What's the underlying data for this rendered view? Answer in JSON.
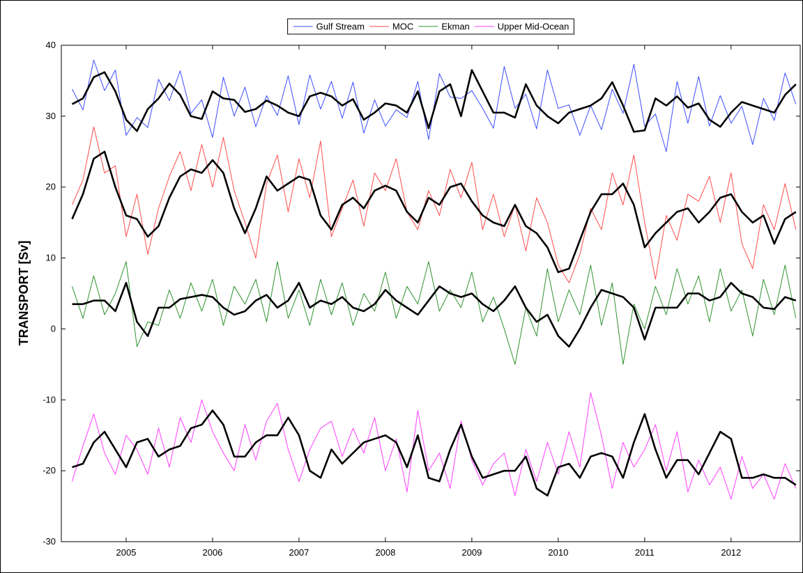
{
  "chart_data": {
    "type": "line",
    "ylabel": "TRANSPORT [Sv]",
    "x": [
      2004.375,
      2004.5,
      2004.625,
      2004.75,
      2004.875,
      2005.0,
      2005.125,
      2005.25,
      2005.375,
      2005.5,
      2005.625,
      2005.75,
      2005.875,
      2006.0,
      2006.125,
      2006.25,
      2006.375,
      2006.5,
      2006.625,
      2006.75,
      2006.875,
      2007.0,
      2007.125,
      2007.25,
      2007.375,
      2007.5,
      2007.625,
      2007.75,
      2007.875,
      2008.0,
      2008.125,
      2008.25,
      2008.375,
      2008.5,
      2008.625,
      2008.75,
      2008.875,
      2009.0,
      2009.125,
      2009.25,
      2009.375,
      2009.5,
      2009.625,
      2009.75,
      2009.875,
      2010.0,
      2010.125,
      2010.25,
      2010.375,
      2010.5,
      2010.625,
      2010.75,
      2010.875,
      2011.0,
      2011.125,
      2011.25,
      2011.375,
      2011.5,
      2011.625,
      2011.75,
      2011.875,
      2012.0,
      2012.125,
      2012.25,
      2012.375,
      2012.5,
      2012.625,
      2012.75
    ],
    "xlim": [
      2004.25,
      2012.8
    ],
    "xticks": [
      2005,
      2006,
      2007,
      2008,
      2009,
      2010,
      2011,
      2012
    ],
    "ylim": [
      -30,
      40
    ],
    "yticks": [
      -30,
      -20,
      -10,
      0,
      10,
      20,
      30,
      40
    ],
    "grid": false,
    "legend": "top",
    "series": [
      {
        "name": "Gulf Stream",
        "color": "#3a4cff",
        "values": [
          33.8,
          30.9,
          37.9,
          33.6,
          36.5,
          27.3,
          29.8,
          28.4,
          35.2,
          32.2,
          36.4,
          30.4,
          32.3,
          27.0,
          35.5,
          30.0,
          34.1,
          28.5,
          32.9,
          30.1,
          35.7,
          28.8,
          35.8,
          31.0,
          34.9,
          29.7,
          34.8,
          27.6,
          32.3,
          28.6,
          30.9,
          29.8,
          34.9,
          26.7,
          36.0,
          32.7,
          32.5,
          33.6,
          31.1,
          28.3,
          37.0,
          31.1,
          33.1,
          28.2,
          36.5,
          31.1,
          31.6,
          27.3,
          31.5,
          28.1,
          33.8,
          30.4,
          37.3,
          28.6,
          30.3,
          25.0,
          34.9,
          29.0,
          35.6,
          28.6,
          32.9,
          29.0,
          31.4,
          26.0,
          32.5,
          29.4,
          36.1,
          31.7
        ]
      },
      {
        "name": "MOC",
        "color": "#ff4a4a",
        "values": [
          17.5,
          21.0,
          28.5,
          22.0,
          23.0,
          13.0,
          19.0,
          10.5,
          17.0,
          21.5,
          25.0,
          19.5,
          26.0,
          20.0,
          27.0,
          19.5,
          15.0,
          10.0,
          20.5,
          24.5,
          16.5,
          24.0,
          18.5,
          26.5,
          13.0,
          17.0,
          21.0,
          14.5,
          22.0,
          19.5,
          24.0,
          16.5,
          14.0,
          19.5,
          16.0,
          22.5,
          18.5,
          23.5,
          14.0,
          19.0,
          13.0,
          17.5,
          11.0,
          18.5,
          15.0,
          9.0,
          6.5,
          10.5,
          17.0,
          14.0,
          22.0,
          17.5,
          24.5,
          15.0,
          7.0,
          16.0,
          12.5,
          19.0,
          18.0,
          21.5,
          15.0,
          22.0,
          12.0,
          8.5,
          17.5,
          14.0,
          20.5,
          14.0
        ]
      },
      {
        "name": "Ekman",
        "color": "#2f922f",
        "values": [
          6.0,
          1.5,
          7.5,
          2.0,
          5.0,
          9.5,
          -2.5,
          1.0,
          0.5,
          5.5,
          1.5,
          6.5,
          2.5,
          7.0,
          0.5,
          6.0,
          3.5,
          7.0,
          1.0,
          9.5,
          1.5,
          5.5,
          0.5,
          7.0,
          2.0,
          6.5,
          0.5,
          5.0,
          2.5,
          8.0,
          1.5,
          6.0,
          3.5,
          9.5,
          2.5,
          5.5,
          3.0,
          8.0,
          1.0,
          4.5,
          0.0,
          -5.0,
          3.0,
          -1.0,
          8.5,
          1.0,
          5.5,
          2.0,
          9.0,
          0.5,
          6.5,
          -5.0,
          3.5,
          0.0,
          6.0,
          2.0,
          8.5,
          3.5,
          7.5,
          1.0,
          8.5,
          2.5,
          5.5,
          -1.0,
          7.0,
          2.0,
          9.0,
          1.5
        ]
      },
      {
        "name": "Upper Mid-Ocean",
        "color": "#ff3cff",
        "values": [
          -21.5,
          -16.5,
          -12.0,
          -17.5,
          -20.5,
          -15.0,
          -17.0,
          -20.5,
          -14.0,
          -19.5,
          -12.5,
          -16.0,
          -10.0,
          -14.5,
          -17.5,
          -20.0,
          -13.5,
          -18.5,
          -13.0,
          -10.5,
          -17.0,
          -21.5,
          -17.0,
          -14.0,
          -13.0,
          -18.0,
          -14.0,
          -17.5,
          -12.5,
          -20.0,
          -15.5,
          -23.0,
          -11.5,
          -20.0,
          -17.5,
          -22.5,
          -13.0,
          -18.5,
          -22.0,
          -19.0,
          -17.5,
          -23.5,
          -17.0,
          -21.5,
          -16.0,
          -20.5,
          -14.5,
          -19.5,
          -9.0,
          -15.0,
          -22.5,
          -16.0,
          -19.5,
          -17.0,
          -13.5,
          -20.0,
          -14.5,
          -23.0,
          -18.5,
          -22.0,
          -19.5,
          -24.0,
          -18.0,
          -22.5,
          -20.5,
          -24.0,
          -19.0,
          -22.5
        ]
      },
      {
        "color": "#000000",
        "values": [
          31.7,
          32.5,
          35.5,
          36.2,
          33.5,
          29.5,
          27.9,
          31.0,
          32.5,
          34.6,
          33.0,
          30.0,
          29.6,
          33.5,
          32.5,
          32.3,
          30.6,
          31.0,
          32.2,
          31.5,
          30.5,
          30.0,
          32.8,
          33.3,
          32.8,
          31.5,
          32.4,
          29.5,
          30.5,
          31.8,
          31.5,
          30.5,
          33.5,
          28.3,
          33.5,
          34.5,
          30.0,
          36.5,
          33.5,
          30.5,
          30.5,
          29.8,
          34.5,
          31.5,
          30.0,
          29.0,
          30.5,
          31.0,
          31.5,
          32.5,
          34.8,
          31.5,
          27.8,
          28.0,
          32.5,
          31.5,
          32.8,
          31.2,
          31.8,
          29.5,
          28.5,
          30.5,
          32.0,
          31.5,
          31.0,
          30.5,
          33.0,
          34.5
        ]
      },
      {
        "color": "#000000",
        "values": [
          15.5,
          19,
          24,
          25,
          20,
          16,
          15.5,
          13,
          14.5,
          18.5,
          21.5,
          22.5,
          22,
          23.8,
          22,
          17,
          13.5,
          17,
          21.5,
          19.5,
          20.5,
          21.5,
          21,
          16,
          14,
          17.5,
          18.5,
          17,
          19.5,
          20.2,
          19.5,
          16.5,
          15,
          18.5,
          17.5,
          20,
          20.5,
          18,
          16,
          15,
          14.5,
          17.5,
          14.5,
          13.5,
          11.5,
          8,
          8.5,
          12.5,
          16.5,
          19,
          19,
          20.5,
          17.5,
          11.5,
          13.5,
          15,
          16.5,
          17,
          15,
          16.5,
          18.5,
          19,
          16.5,
          15,
          16,
          12,
          15.5,
          16.5
        ]
      },
      {
        "color": "#000000",
        "values": [
          3.5,
          3.5,
          4,
          4,
          2.5,
          6.5,
          1,
          -1,
          3,
          3,
          4.2,
          4.5,
          4.8,
          4.5,
          3,
          2,
          2.5,
          4,
          4.8,
          3,
          4,
          6.5,
          3,
          4,
          3.5,
          4.5,
          3,
          2.5,
          3.5,
          5.5,
          4,
          3,
          2,
          4,
          6,
          5,
          4.5,
          5,
          3.5,
          2.5,
          4,
          6,
          3,
          1,
          2,
          -1,
          -2.5,
          0,
          3,
          5.5,
          5,
          4.5,
          3,
          -1.5,
          3,
          3,
          3,
          5,
          5,
          4,
          4.5,
          6.5,
          5,
          4.5,
          3,
          2.8,
          4.5,
          4
        ]
      },
      {
        "color": "#000000",
        "values": [
          -19.5,
          -19,
          -16,
          -14.5,
          -17,
          -19.5,
          -16,
          -15.5,
          -18,
          -17,
          -16.5,
          -14,
          -13.5,
          -11.5,
          -13.5,
          -18,
          -18,
          -16,
          -15,
          -15,
          -12.5,
          -15,
          -20,
          -21,
          -17,
          -19,
          -17.5,
          -16,
          -15.5,
          -15,
          -16,
          -19.5,
          -15,
          -21,
          -21.5,
          -17,
          -13.5,
          -18,
          -21,
          -20.5,
          -20,
          -20,
          -18,
          -22.5,
          -23.5,
          -19.5,
          -19,
          -21,
          -18,
          -17.5,
          -18,
          -21,
          -16,
          -12,
          -17,
          -21,
          -18.5,
          -18.5,
          -20.5,
          -17.5,
          -14.5,
          -15.5,
          -21,
          -21,
          -20.5,
          -21,
          -21,
          -22
        ]
      }
    ]
  }
}
